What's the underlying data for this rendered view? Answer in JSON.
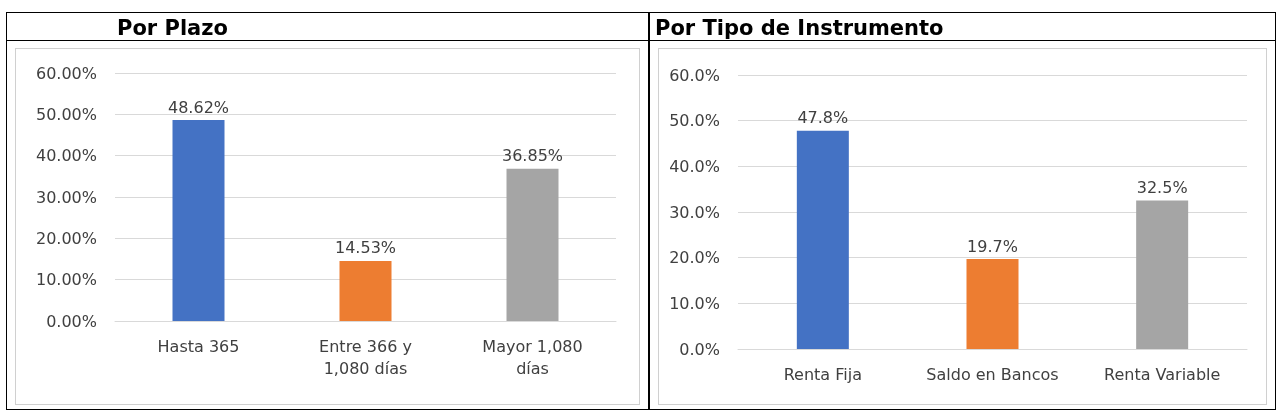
{
  "chart_data": [
    {
      "type": "bar",
      "title": "Por Plazo",
      "categories": [
        "Hasta 365",
        "Entre 366 y 1,080 días",
        "Mayor 1,080 días"
      ],
      "values": [
        48.62,
        14.53,
        36.85
      ],
      "colors": [
        "#4472c4",
        "#ed7d31",
        "#a5a5a5"
      ],
      "value_labels": [
        "48.62%",
        "14.53%",
        "36.85%"
      ],
      "ylim": [
        0,
        60
      ],
      "yticks": [
        {
          "value": 0,
          "label": "0.00%"
        },
        {
          "value": 10,
          "label": "10.00%"
        },
        {
          "value": 20,
          "label": "20.00%"
        },
        {
          "value": 30,
          "label": "30.00%"
        },
        {
          "value": 40,
          "label": "40.00%"
        },
        {
          "value": 50,
          "label": "50.00%"
        },
        {
          "value": 60,
          "label": "60.00%"
        }
      ],
      "grid": "y"
    },
    {
      "type": "bar",
      "title": "Por Tipo de Instrumento",
      "categories": [
        "Renta Fija",
        "Saldo en Bancos",
        "Renta Variable"
      ],
      "values": [
        47.8,
        19.7,
        32.5
      ],
      "colors": [
        "#4472c4",
        "#ed7d31",
        "#a5a5a5"
      ],
      "value_labels": [
        "47.8%",
        "19.7%",
        "32.5%"
      ],
      "ylim": [
        0,
        60
      ],
      "yticks": [
        {
          "value": 0,
          "label": "0.0%"
        },
        {
          "value": 10,
          "label": "10.0%"
        },
        {
          "value": 20,
          "label": "20.0%"
        },
        {
          "value": 30,
          "label": "30.0%"
        },
        {
          "value": 40,
          "label": "40.0%"
        },
        {
          "value": 50,
          "label": "50.0%"
        },
        {
          "value": 60,
          "label": "60.0%"
        }
      ],
      "grid": "y"
    }
  ]
}
